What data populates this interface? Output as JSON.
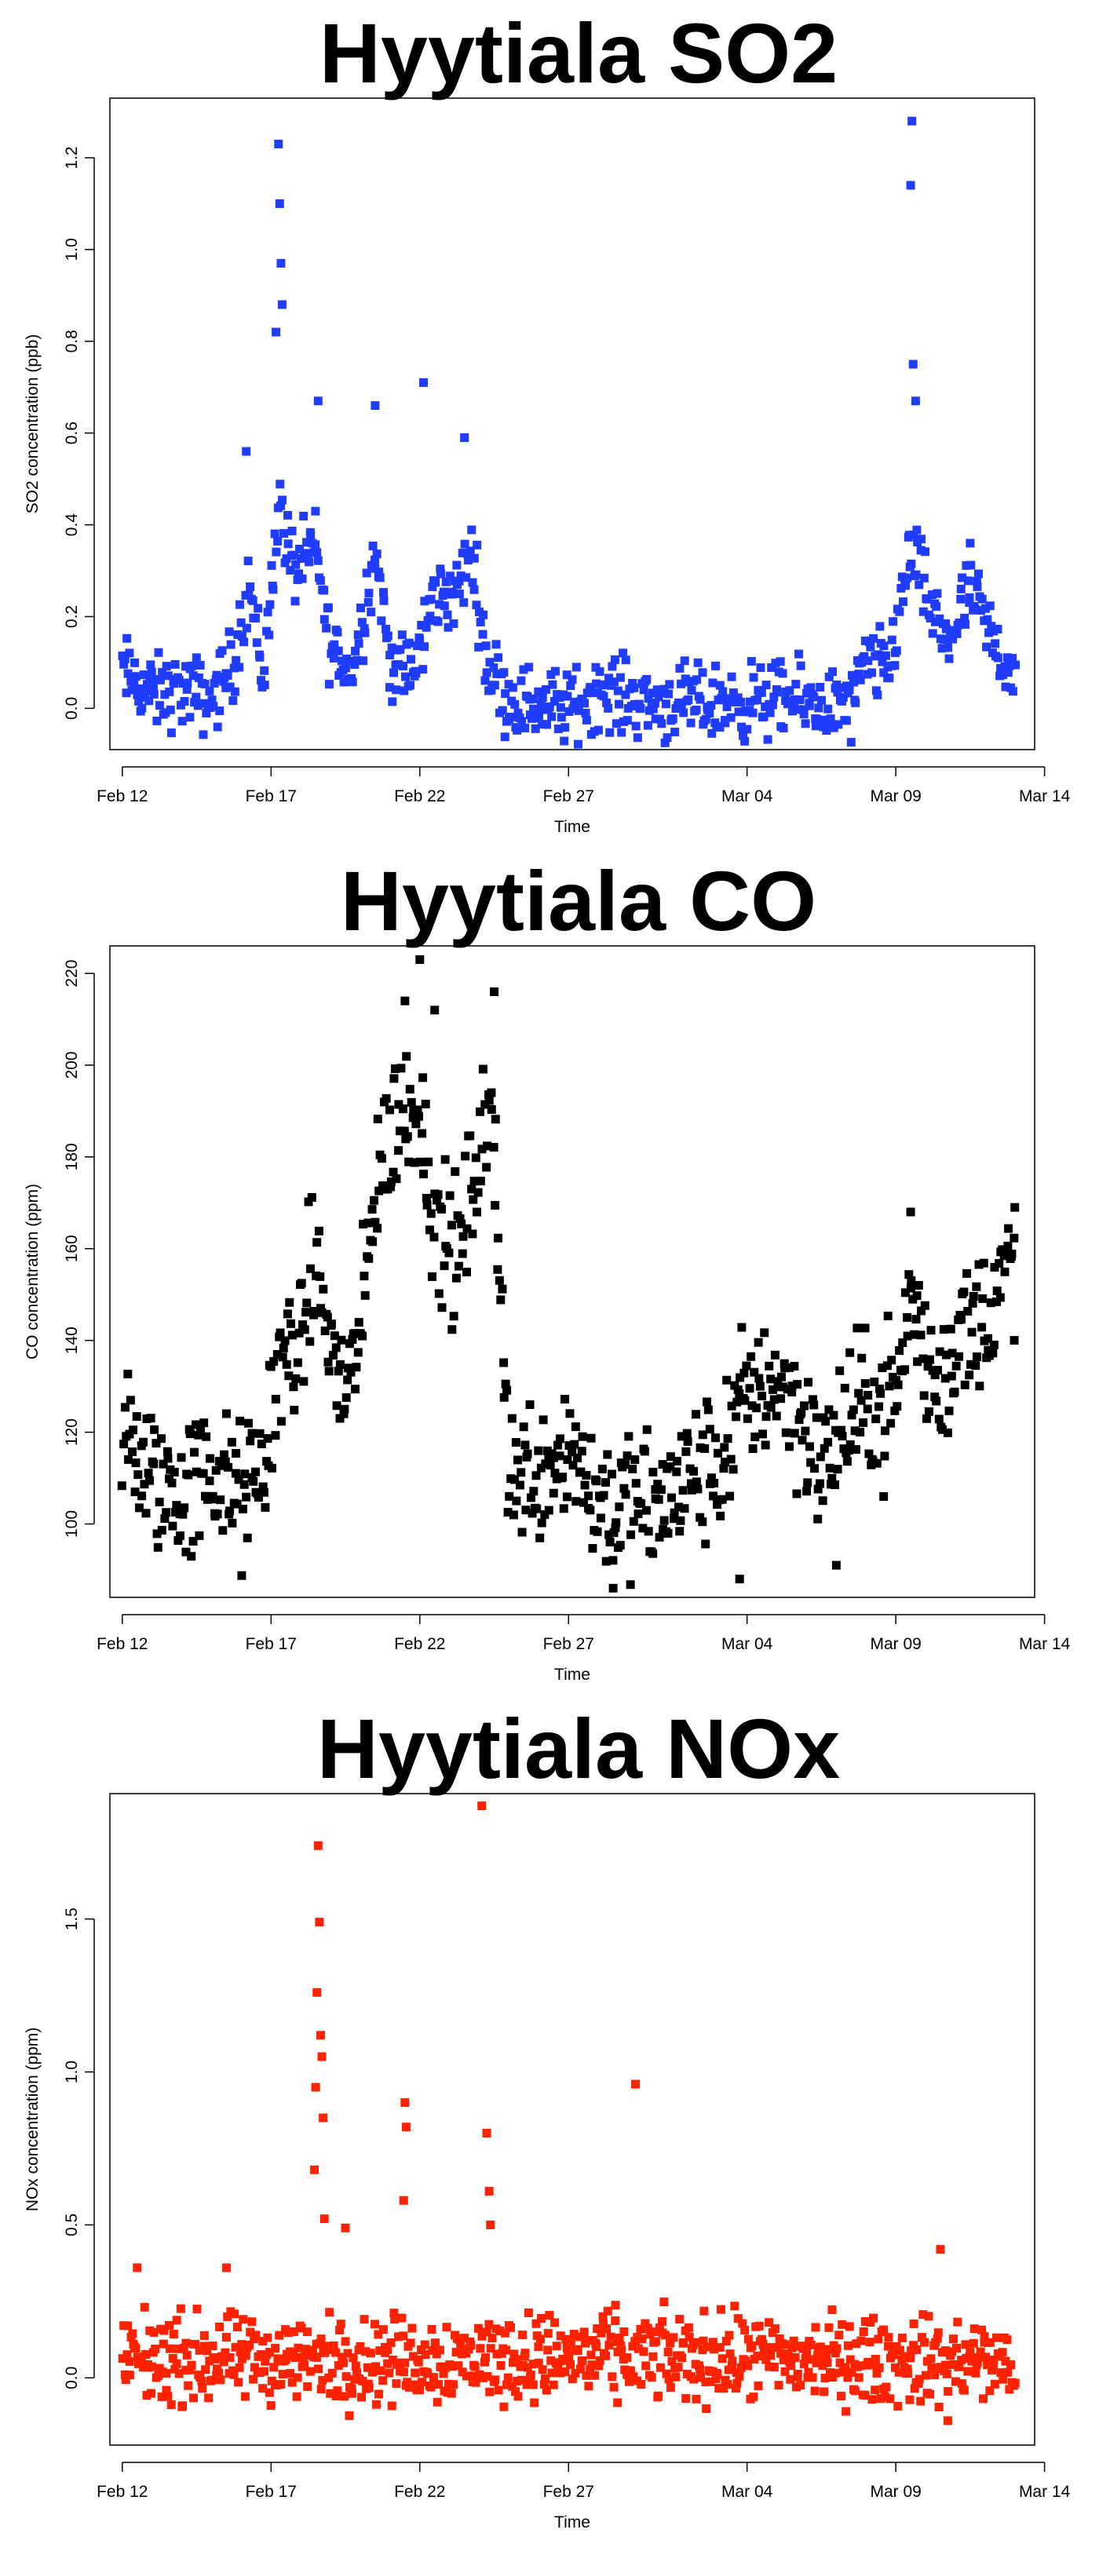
{
  "chart_data": [
    {
      "type": "scatter",
      "title": "Hyytiala SO2",
      "xlabel": "Time",
      "ylabel": "SO2 concentration (ppb)",
      "xlim": [
        "2012-02-11T14:00",
        "2012-03-13T16:00"
      ],
      "ylim": [
        -0.09,
        1.33
      ],
      "x_ticks": [
        {
          "label": "Feb 12",
          "date": "2012-02-12"
        },
        {
          "label": "Feb 17",
          "date": "2012-02-17"
        },
        {
          "label": "Feb 22",
          "date": "2012-02-22"
        },
        {
          "label": "Feb 27",
          "date": "2012-02-27"
        },
        {
          "label": "Mar 04",
          "date": "2012-03-04"
        },
        {
          "label": "Mar 09",
          "date": "2012-03-09"
        },
        {
          "label": "Mar 14",
          "date": "2012-03-14"
        }
      ],
      "y_ticks": [
        "0.0",
        "0.2",
        "0.4",
        "0.6",
        "0.8",
        "1.0",
        "1.2"
      ],
      "color": "#1f3cff",
      "anchors": [
        [
          "2012-02-12T00:00",
          0.08
        ],
        [
          "2012-02-13T00:00",
          0.03
        ],
        [
          "2012-02-14T00:00",
          0.04
        ],
        [
          "2012-02-15T00:00",
          0.02
        ],
        [
          "2012-02-15T18:00",
          0.1
        ],
        [
          "2012-02-16T06:00",
          0.28
        ],
        [
          "2012-02-16T18:00",
          0.06
        ],
        [
          "2012-02-17T06:00",
          0.45
        ],
        [
          "2012-02-17T18:00",
          0.3
        ],
        [
          "2012-02-18T12:00",
          0.35
        ],
        [
          "2012-02-19T00:00",
          0.13
        ],
        [
          "2012-02-19T18:00",
          0.08
        ],
        [
          "2012-02-20T12:00",
          0.35
        ],
        [
          "2012-02-21T00:00",
          0.1
        ],
        [
          "2012-02-21T18:00",
          0.07
        ],
        [
          "2012-02-22T12:00",
          0.25
        ],
        [
          "2012-02-23T06:00",
          0.25
        ],
        [
          "2012-02-23T18:00",
          0.35
        ],
        [
          "2012-02-24T06:00",
          0.1
        ],
        [
          "2012-02-25T00:00",
          0.02
        ],
        [
          "2012-02-26T00:00",
          0.01
        ],
        [
          "2012-02-27T00:00",
          0.0
        ],
        [
          "2012-02-28T00:00",
          0.04
        ],
        [
          "2012-03-01T00:00",
          0.01
        ],
        [
          "2012-03-03T00:00",
          0.01
        ],
        [
          "2012-03-05T00:00",
          0.02
        ],
        [
          "2012-03-06T12:00",
          0.01
        ],
        [
          "2012-03-07T12:00",
          0.0
        ],
        [
          "2012-03-08T00:00",
          0.1
        ],
        [
          "2012-03-08T18:00",
          0.08
        ],
        [
          "2012-03-09T12:00",
          0.35
        ],
        [
          "2012-03-10T06:00",
          0.2
        ],
        [
          "2012-03-10T18:00",
          0.15
        ],
        [
          "2012-03-11T12:00",
          0.25
        ],
        [
          "2012-03-12T06:00",
          0.15
        ],
        [
          "2012-03-13T00:00",
          0.07
        ]
      ],
      "spread": 0.04,
      "peaks": [
        [
          "2012-02-17T06:00",
          1.23
        ],
        [
          "2012-02-17T07:00",
          1.1
        ],
        [
          "2012-02-17T08:00",
          0.97
        ],
        [
          "2012-02-17T09:00",
          0.88
        ],
        [
          "2012-02-17T04:00",
          0.82
        ],
        [
          "2012-02-16T04:00",
          0.56
        ],
        [
          "2012-02-18T14:00",
          0.67
        ],
        [
          "2012-02-20T12:00",
          0.66
        ],
        [
          "2012-02-22T03:00",
          0.71
        ],
        [
          "2012-02-23T12:00",
          0.59
        ],
        [
          "2012-03-09T13:00",
          1.28
        ],
        [
          "2012-03-09T12:00",
          1.14
        ],
        [
          "2012-03-09T14:00",
          0.75
        ],
        [
          "2012-03-09T16:00",
          0.67
        ],
        [
          "2012-03-11T12:00",
          0.36
        ]
      ],
      "n": 720
    },
    {
      "type": "scatter",
      "title": "Hyytiala CO",
      "xlabel": "Time",
      "ylabel": "CO concentration (ppm)",
      "xlim": [
        "2012-02-11T14:00",
        "2012-03-13T16:00"
      ],
      "ylim": [
        84,
        226
      ],
      "x_ticks": [
        {
          "label": "Feb 12",
          "date": "2012-02-12"
        },
        {
          "label": "Feb 17",
          "date": "2012-02-17"
        },
        {
          "label": "Feb 22",
          "date": "2012-02-22"
        },
        {
          "label": "Feb 27",
          "date": "2012-02-27"
        },
        {
          "label": "Mar 04",
          "date": "2012-03-04"
        },
        {
          "label": "Mar 09",
          "date": "2012-03-09"
        },
        {
          "label": "Mar 14",
          "date": "2012-03-14"
        }
      ],
      "y_ticks": [
        "100",
        "120",
        "140",
        "160",
        "180",
        "200",
        "220"
      ],
      "color": "#000000",
      "anchors": [
        [
          "2012-02-12T00:00",
          118
        ],
        [
          "2012-02-13T00:00",
          110
        ],
        [
          "2012-02-14T00:00",
          106
        ],
        [
          "2012-02-15T00:00",
          112
        ],
        [
          "2012-02-16T00:00",
          105
        ],
        [
          "2012-02-16T18:00",
          112
        ],
        [
          "2012-02-17T06:00",
          135
        ],
        [
          "2012-02-18T00:00",
          140
        ],
        [
          "2012-02-18T12:00",
          158
        ],
        [
          "2012-02-19T06:00",
          130
        ],
        [
          "2012-02-20T00:00",
          138
        ],
        [
          "2012-02-20T12:00",
          175
        ],
        [
          "2012-02-21T06:00",
          188
        ],
        [
          "2012-02-22T00:00",
          192
        ],
        [
          "2012-02-22T12:00",
          165
        ],
        [
          "2012-02-23T06:00",
          158
        ],
        [
          "2012-02-24T00:00",
          180
        ],
        [
          "2012-02-24T12:00",
          188
        ],
        [
          "2012-02-25T00:00",
          110
        ],
        [
          "2012-02-26T00:00",
          112
        ],
        [
          "2012-02-27T00:00",
          118
        ],
        [
          "2012-02-28T00:00",
          105
        ],
        [
          "2012-03-01T00:00",
          103
        ],
        [
          "2012-03-02T00:00",
          110
        ],
        [
          "2012-03-03T00:00",
          112
        ],
        [
          "2012-03-04T00:00",
          128
        ],
        [
          "2012-03-05T00:00",
          132
        ],
        [
          "2012-03-06T00:00",
          122
        ],
        [
          "2012-03-06T12:00",
          110
        ],
        [
          "2012-03-07T00:00",
          120
        ],
        [
          "2012-03-08T00:00",
          125
        ],
        [
          "2012-03-09T00:00",
          128
        ],
        [
          "2012-03-09T12:00",
          150
        ],
        [
          "2012-03-10T00:00",
          135
        ],
        [
          "2012-03-10T12:00",
          130
        ],
        [
          "2012-03-11T00:00",
          140
        ],
        [
          "2012-03-12T00:00",
          145
        ],
        [
          "2012-03-13T00:00",
          158
        ]
      ],
      "spread": 8,
      "peaks": [
        [
          "2012-02-22T00:00",
          223
        ],
        [
          "2012-02-24T12:00",
          216
        ],
        [
          "2012-02-21T12:00",
          214
        ],
        [
          "2012-02-22T12:00",
          212
        ],
        [
          "2012-02-28T12:00",
          86
        ],
        [
          "2012-03-03T18:00",
          88
        ],
        [
          "2012-03-07T00:00",
          91
        ],
        [
          "2012-03-09T12:00",
          168
        ],
        [
          "2012-03-13T00:00",
          169
        ]
      ],
      "n": 720
    },
    {
      "type": "scatter",
      "title": "Hyytiala NOx",
      "xlabel": "Time",
      "ylabel": "NOx concentration (ppm)",
      "xlim": [
        "2012-02-11T14:00",
        "2012-03-13T16:00"
      ],
      "ylim": [
        -0.22,
        1.91
      ],
      "x_ticks": [
        {
          "label": "Feb 12",
          "date": "2012-02-12"
        },
        {
          "label": "Feb 17",
          "date": "2012-02-17"
        },
        {
          "label": "Feb 22",
          "date": "2012-02-22"
        },
        {
          "label": "Feb 27",
          "date": "2012-02-27"
        },
        {
          "label": "Mar 04",
          "date": "2012-03-04"
        },
        {
          "label": "Mar 09",
          "date": "2012-03-09"
        },
        {
          "label": "Mar 14",
          "date": "2012-03-14"
        }
      ],
      "y_ticks": [
        "0.0",
        "0.5",
        "1.0",
        "1.5"
      ],
      "color": "#ff2200",
      "anchors": [
        [
          "2012-02-12T00:00",
          0.06
        ],
        [
          "2012-02-20T00:00",
          0.06
        ],
        [
          "2012-02-28T00:00",
          0.07
        ],
        [
          "2012-03-05T00:00",
          0.06
        ],
        [
          "2012-03-13T00:00",
          0.05
        ]
      ],
      "spread": 0.07,
      "peaks": [
        [
          "2012-02-18T14:00",
          1.74
        ],
        [
          "2012-02-18T15:00",
          1.49
        ],
        [
          "2012-02-18T13:00",
          1.26
        ],
        [
          "2012-02-18T16:00",
          1.12
        ],
        [
          "2012-02-18T17:00",
          1.05
        ],
        [
          "2012-02-18T12:00",
          0.95
        ],
        [
          "2012-02-18T18:00",
          0.85
        ],
        [
          "2012-02-18T11:00",
          0.68
        ],
        [
          "2012-02-18T19:00",
          0.52
        ],
        [
          "2012-02-21T12:00",
          0.9
        ],
        [
          "2012-02-21T13:00",
          0.82
        ],
        [
          "2012-02-21T11:00",
          0.58
        ],
        [
          "2012-02-24T02:00",
          1.87
        ],
        [
          "2012-02-24T06:00",
          0.8
        ],
        [
          "2012-02-24T08:00",
          0.61
        ],
        [
          "2012-02-24T09:00",
          0.5
        ],
        [
          "2012-02-29T06:00",
          0.96
        ],
        [
          "2012-02-19T12:00",
          0.49
        ],
        [
          "2012-02-12T12:00",
          0.36
        ],
        [
          "2012-02-15T12:00",
          0.36
        ],
        [
          "2012-03-10T12:00",
          0.42
        ],
        [
          "2012-03-10T18:00",
          -0.14
        ]
      ],
      "n": 780
    }
  ]
}
